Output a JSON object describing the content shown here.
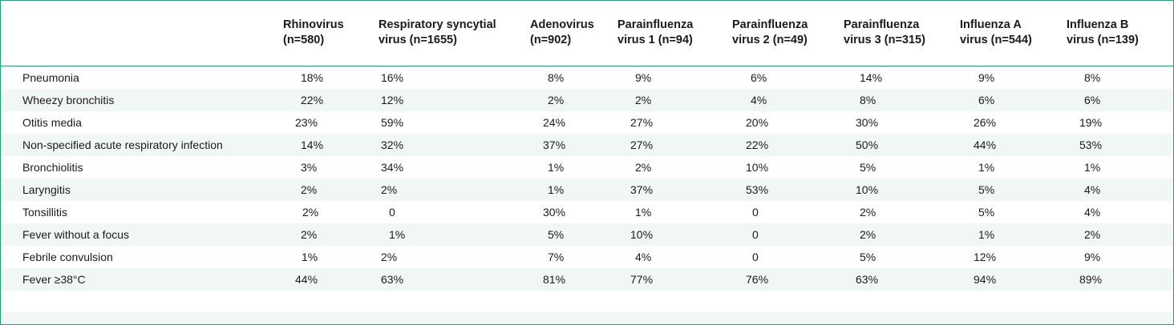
{
  "table": {
    "columns": [
      "Rhinovirus (n=580)",
      "Respiratory syncytial virus (n=1655)",
      "Adenovirus (n=902)",
      "Parainfluenza virus 1 (n=94)",
      "Parainfluenza virus 2 (n=49)",
      "Parainfluenza virus 3 (n=315)",
      "Influenza A virus (n=544)",
      "Influenza B virus (n=139)"
    ],
    "header_lines": [
      [
        "Rhinovirus",
        "(n=580)"
      ],
      [
        "Respiratory syncytial",
        "virus (n=1655)"
      ],
      [
        "Adenovirus",
        "(n=902)"
      ],
      [
        "Parainfluenza",
        "virus 1 (n=94)"
      ],
      [
        "Parainfluenza",
        "virus 2 (n=49)"
      ],
      [
        "Parainfluenza",
        "virus 3 (n=315)"
      ],
      [
        "Influenza A",
        "virus (n=544)"
      ],
      [
        "Influenza B",
        "virus (n=139)"
      ]
    ],
    "rows": [
      {
        "label": "Pneumonia",
        "values": [
          "18%",
          "16%",
          "8%",
          "9%",
          "6%",
          "14%",
          "9%",
          "8%"
        ]
      },
      {
        "label": "Wheezy bronchitis",
        "values": [
          "22%",
          "12%",
          "2%",
          "2%",
          "4%",
          "8%",
          "6%",
          "6%"
        ]
      },
      {
        "label": "Otitis media",
        "values": [
          "23%",
          "59%",
          "24%",
          "27%",
          "20%",
          "30%",
          "26%",
          "19%"
        ]
      },
      {
        "label": "Non-specified acute respiratory infection",
        "values": [
          "14%",
          "32%",
          "37%",
          "27%",
          "22%",
          "50%",
          "44%",
          "53%"
        ]
      },
      {
        "label": "Bronchiolitis",
        "values": [
          "3%",
          "34%",
          "1%",
          "2%",
          "10%",
          "5%",
          "1%",
          "1%"
        ]
      },
      {
        "label": "Laryngitis",
        "values": [
          "2%",
          "2%",
          "1%",
          "37%",
          "53%",
          "10%",
          "5%",
          "4%"
        ]
      },
      {
        "label": "Tonsillitis",
        "values": [
          "2%",
          "0",
          "30%",
          "1%",
          "0",
          "2%",
          "5%",
          "4%"
        ]
      },
      {
        "label": "Fever without a focus",
        "values": [
          "2%",
          "1%",
          "5%",
          "10%",
          "0",
          "2%",
          "1%",
          "2%"
        ]
      },
      {
        "label": "Febrile convulsion",
        "values": [
          "1%",
          "2%",
          "7%",
          "4%",
          "0",
          "5%",
          "12%",
          "9%"
        ]
      },
      {
        "label": "Fever ≥38°C",
        "values": [
          "44%",
          "63%",
          "81%",
          "77%",
          "76%",
          "63%",
          "94%",
          "89%"
        ]
      }
    ]
  },
  "colors": {
    "border": "#2e9a7a",
    "alt_row": "#f1f7f4"
  }
}
